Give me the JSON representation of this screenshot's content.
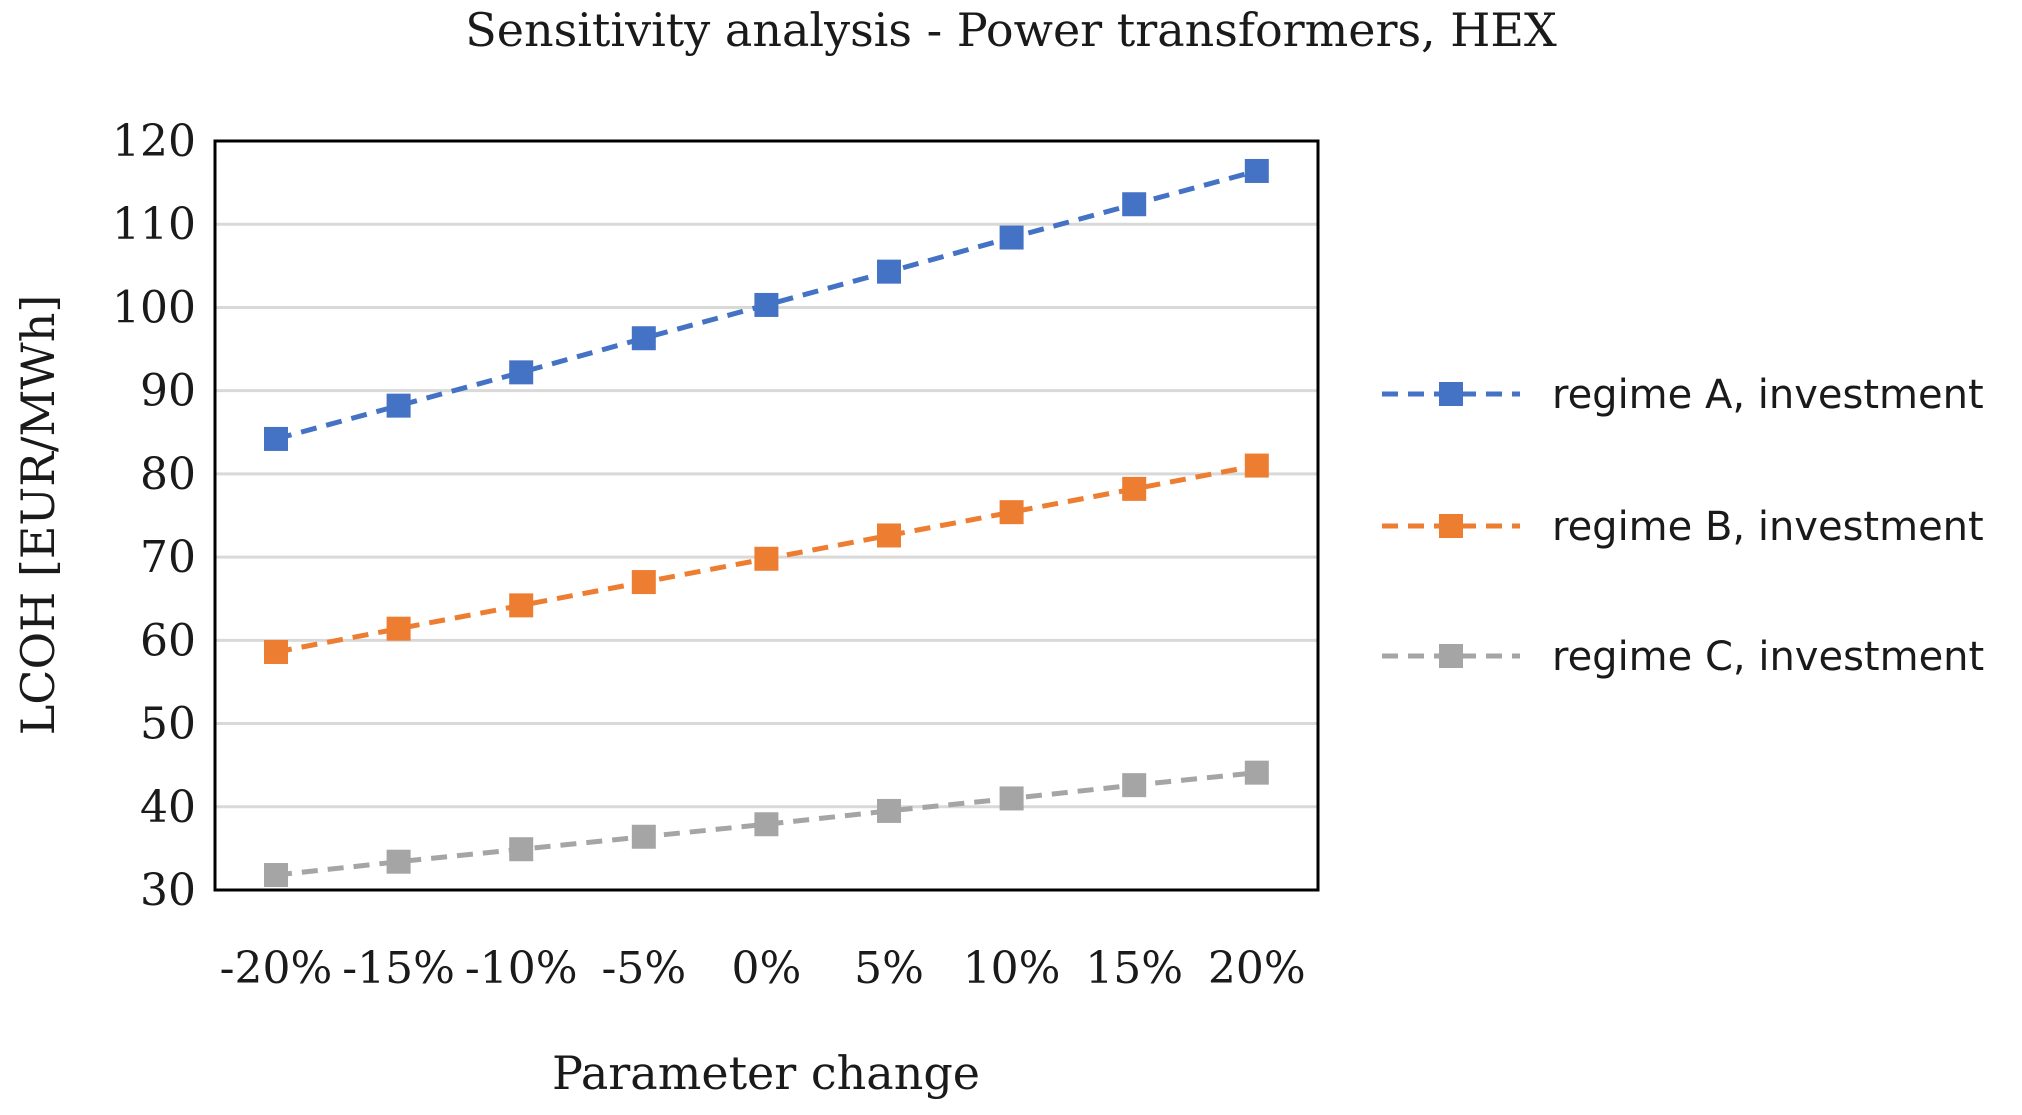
{
  "chart_data": {
    "type": "line",
    "title": "Sensitivity analysis - Power transformers, HEX",
    "xlabel": "Parameter change",
    "ylabel": "LCOH [EUR/MWh]",
    "categories": [
      "-20%",
      "-15%",
      "-10%",
      "-5%",
      "0%",
      "5%",
      "10%",
      "15%",
      "20%"
    ],
    "ylim": [
      30,
      120
    ],
    "yticks": [
      30,
      40,
      50,
      60,
      70,
      80,
      90,
      100,
      110,
      120
    ],
    "grid": true,
    "legend_position": "right",
    "series": [
      {
        "name": "regime A, investment",
        "color": "#4472C4",
        "line_style": "dashed",
        "marker": "square",
        "values": [
          84.2,
          88.2,
          92.2,
          96.3,
          100.3,
          104.3,
          108.4,
          112.4,
          116.4
        ]
      },
      {
        "name": "regime B, investment",
        "color": "#ED7D31",
        "line_style": "dashed",
        "marker": "square",
        "values": [
          58.6,
          61.4,
          64.2,
          67.0,
          69.8,
          72.6,
          75.4,
          78.2,
          81.0
        ]
      },
      {
        "name": "regime C, investment",
        "color": "#A5A5A5",
        "line_style": "dashed",
        "marker": "square",
        "values": [
          31.8,
          33.4,
          34.9,
          36.4,
          37.9,
          39.5,
          41.0,
          42.6,
          44.1
        ]
      }
    ]
  }
}
